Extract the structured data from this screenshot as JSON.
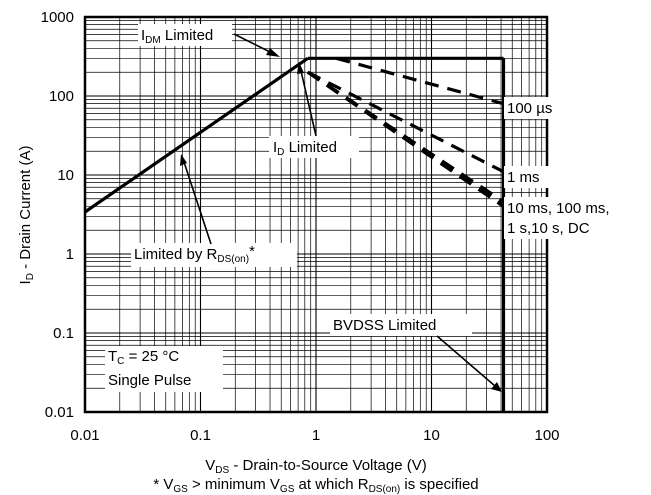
{
  "chart_data": {
    "type": "line",
    "x_scale": "log",
    "y_scale": "log",
    "xlim": [
      0.01,
      100
    ],
    "ylim": [
      0.01,
      1000
    ],
    "grid": true,
    "x_ticks": [
      "0.01",
      "0.1",
      "1",
      "10",
      "100"
    ],
    "y_ticks": [
      "1000",
      "100",
      "10",
      "1",
      "0.1",
      "0.01"
    ],
    "xlabel": {
      "main": "V",
      "sub": "DS",
      "rest": " - Drain-to-Source Voltage (V)"
    },
    "ylabel": {
      "main": "I",
      "sub": "D",
      "rest": " - Drain Current (A)"
    },
    "footnote": {
      "p1": "* V",
      "s1": "GS",
      "p2": " > minimum V",
      "s2": "GS",
      "p3": " at which R",
      "s3": "DS(on)",
      "p4": " is specified"
    },
    "series": [
      {
        "style": "solid",
        "x": [
          0.01,
          0.85
        ],
        "y": [
          3.4,
          300
        ]
      },
      {
        "style": "solid",
        "x": [
          0.85,
          42
        ],
        "y": [
          300,
          300
        ]
      },
      {
        "style": "solid",
        "x": [
          42,
          42
        ],
        "y": [
          0.01,
          300
        ]
      },
      {
        "style": "dashed",
        "x": [
          1.5,
          42
        ],
        "y": [
          300,
          80
        ]
      },
      {
        "style": "dashed",
        "x": [
          0.85,
          42
        ],
        "y": [
          200,
          11
        ]
      },
      {
        "style": "dashed",
        "x": [
          0.85,
          42
        ],
        "y": [
          200,
          4
        ]
      },
      {
        "style": "dashed",
        "x": [
          0.85,
          42
        ],
        "y": [
          200,
          4.3
        ]
      },
      {
        "style": "dashed",
        "x": [
          0.85,
          42
        ],
        "y": [
          200,
          4.6
        ]
      }
    ],
    "annotations": {
      "idm": {
        "main": "I",
        "sub": "DM",
        "rest": " Limited"
      },
      "id": {
        "main": "I",
        "sub": "D",
        "rest": " Limited"
      },
      "rds": {
        "main": "Limited by R",
        "sub": "DS(on)",
        "rest": "*"
      },
      "bvdss": "BVDSS Limited",
      "tc": {
        "main": "T",
        "sub": "C",
        "rest": " = 25 °C"
      },
      "single_pulse": "Single Pulse",
      "l100us": "100 µs",
      "l1ms": "1 ms",
      "l10ms_1": "10 ms, 100 ms,",
      "l10ms_2": "1 s,10 s, DC"
    }
  }
}
